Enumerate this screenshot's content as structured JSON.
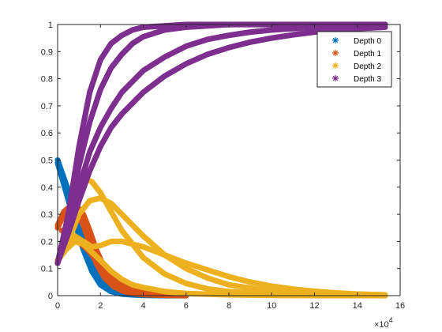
{
  "chart_data": {
    "type": "scatter",
    "title": "",
    "xlabel": "",
    "ylabel": "",
    "xlim": [
      0,
      16
    ],
    "ylim": [
      0,
      1
    ],
    "x_multiplier_label": "×10",
    "x_multiplier_exponent": "4",
    "x_ticks": [
      0,
      2,
      4,
      6,
      8,
      10,
      12,
      14,
      16
    ],
    "x_tick_labels": [
      "0",
      "2",
      "4",
      "6",
      "8",
      "10",
      "12",
      "14",
      "16"
    ],
    "y_ticks": [
      0,
      0.1,
      0.2,
      0.3,
      0.4,
      0.5,
      0.6,
      0.7,
      0.8,
      0.9,
      1
    ],
    "y_tick_labels": [
      "0",
      "0.1",
      "0.2",
      "0.3",
      "0.4",
      "0.5",
      "0.6",
      "0.7",
      "0.8",
      "0.9",
      "1"
    ],
    "grid": false,
    "legend_position": "top-right",
    "marker": "*",
    "series": [
      {
        "name": "Depth 0",
        "color": "#0072BD",
        "curves": [
          {
            "x": [
              0,
              0.4,
              0.8,
              1.2,
              1.6,
              2.0,
              2.5,
              3.0,
              3.5,
              4.0,
              5.0,
              6.0
            ],
            "y": [
              0.5,
              0.41,
              0.31,
              0.21,
              0.12,
              0.06,
              0.025,
              0.01,
              0.005,
              0.002,
              0.001,
              0.0
            ]
          },
          {
            "x": [
              0,
              0.4,
              0.8,
              1.2,
              1.6,
              2.0,
              2.5,
              3.0,
              3.5,
              4.0,
              5.0,
              6.0
            ],
            "y": [
              0.49,
              0.38,
              0.27,
              0.17,
              0.09,
              0.04,
              0.015,
              0.006,
              0.003,
              0.001,
              0.0,
              0.0
            ]
          }
        ]
      },
      {
        "name": "Depth 1",
        "color": "#D95319",
        "curves": [
          {
            "x": [
              0,
              0.3,
              0.6,
              0.9,
              1.2,
              1.5,
              1.8,
              2.2,
              2.6,
              3.0,
              3.5,
              4.0,
              5.0,
              6.0
            ],
            "y": [
              0.25,
              0.3,
              0.33,
              0.33,
              0.3,
              0.24,
              0.17,
              0.1,
              0.055,
              0.03,
              0.015,
              0.008,
              0.003,
              0.0
            ]
          },
          {
            "x": [
              0,
              0.3,
              0.6,
              0.9,
              1.2,
              1.5,
              1.8,
              2.2,
              2.6,
              3.0,
              3.5,
              4.0,
              5.0,
              6.0
            ],
            "y": [
              0.26,
              0.31,
              0.33,
              0.31,
              0.26,
              0.19,
              0.12,
              0.065,
              0.035,
              0.018,
              0.008,
              0.004,
              0.001,
              0.0
            ]
          },
          {
            "x": [
              0.2,
              0.5,
              0.8,
              1.1,
              1.4,
              1.8,
              2.2,
              2.6,
              3.0,
              3.5,
              4.0,
              4.5,
              5.0,
              6.0
            ],
            "y": [
              0.24,
              0.22,
              0.21,
              0.19,
              0.17,
              0.13,
              0.09,
              0.06,
              0.04,
              0.025,
              0.015,
              0.01,
              0.006,
              0.002
            ]
          }
        ]
      },
      {
        "name": "Depth 2",
        "color": "#EDB120",
        "curves": [
          {
            "x": [
              0,
              0.5,
              1.0,
              1.3,
              1.6,
              2.0,
              2.5,
              3.0,
              4.0,
              5.0,
              6.0,
              7.0,
              8.0,
              10.0,
              12.0,
              15.3
            ],
            "y": [
              0.13,
              0.22,
              0.38,
              0.43,
              0.42,
              0.38,
              0.31,
              0.24,
              0.14,
              0.08,
              0.045,
              0.025,
              0.015,
              0.005,
              0.002,
              0.0
            ]
          },
          {
            "x": [
              0,
              0.5,
              1.0,
              1.5,
              2.0,
              2.5,
              3.0,
              4.0,
              5.0,
              6.0,
              7.0,
              8.0,
              10.0,
              12.0,
              15.3
            ],
            "y": [
              0.13,
              0.2,
              0.3,
              0.35,
              0.36,
              0.34,
              0.3,
              0.22,
              0.15,
              0.1,
              0.065,
              0.04,
              0.016,
              0.006,
              0.0
            ]
          },
          {
            "x": [
              0,
              0.4,
              0.8,
              1.2,
              1.6,
              2.0,
              2.5,
              3.0,
              4.0,
              5.0,
              6.0,
              7.0,
              8.0,
              9.0,
              10.0,
              11.0,
              12.0,
              13.0,
              14.0,
              15.3
            ],
            "y": [
              0.13,
              0.18,
              0.22,
              0.2,
              0.18,
              0.185,
              0.2,
              0.2,
              0.18,
              0.15,
              0.12,
              0.095,
              0.07,
              0.05,
              0.035,
              0.024,
              0.016,
              0.01,
              0.006,
              0.003
            ]
          },
          {
            "x": [
              0,
              0.4,
              0.8,
              1.2,
              1.6,
              2.0,
              2.5,
              3.0,
              3.5,
              4.0,
              5.0,
              6.0,
              8.0,
              10.0,
              12.0,
              15.3
            ],
            "y": [
              0.13,
              0.17,
              0.2,
              0.19,
              0.16,
              0.13,
              0.09,
              0.06,
              0.04,
              0.03,
              0.015,
              0.008,
              0.003,
              0.001,
              0.0,
              0.0
            ]
          }
        ]
      },
      {
        "name": "Depth 3",
        "color": "#7E2F8E",
        "curves": [
          {
            "x": [
              0,
              0.5,
              1.0,
              1.5,
              2.0,
              2.5,
              3.0,
              3.5,
              4.0,
              5.0,
              6.0,
              8.0,
              10.0,
              15.3
            ],
            "y": [
              0.12,
              0.3,
              0.55,
              0.75,
              0.87,
              0.93,
              0.96,
              0.98,
              0.99,
              0.995,
              1.0,
              1.0,
              1.0,
              1.0
            ]
          },
          {
            "x": [
              0,
              0.5,
              1.0,
              1.5,
              2.0,
              2.5,
              3.0,
              3.5,
              4.0,
              5.0,
              6.0,
              7.0,
              8.0,
              10.0,
              15.3
            ],
            "y": [
              0.12,
              0.28,
              0.48,
              0.64,
              0.76,
              0.84,
              0.89,
              0.93,
              0.955,
              0.98,
              0.99,
              0.995,
              1.0,
              1.0,
              1.0
            ]
          },
          {
            "x": [
              0,
              0.5,
              1.0,
              1.5,
              2.0,
              2.5,
              3.0,
              4.0,
              5.0,
              6.0,
              7.0,
              8.0,
              9.0,
              10.0,
              12.0,
              15.3
            ],
            "y": [
              0.12,
              0.25,
              0.4,
              0.53,
              0.62,
              0.69,
              0.75,
              0.83,
              0.88,
              0.92,
              0.945,
              0.96,
              0.972,
              0.98,
              0.99,
              1.0
            ]
          },
          {
            "x": [
              0,
              0.5,
              1.0,
              1.5,
              2.0,
              2.5,
              3.0,
              4.0,
              5.0,
              6.0,
              7.0,
              8.0,
              9.0,
              10.0,
              11.0,
              12.0,
              13.0,
              14.0,
              15.3
            ],
            "y": [
              0.12,
              0.23,
              0.35,
              0.46,
              0.55,
              0.62,
              0.67,
              0.75,
              0.81,
              0.855,
              0.89,
              0.915,
              0.935,
              0.95,
              0.962,
              0.972,
              0.98,
              0.985,
              0.99
            ]
          }
        ]
      }
    ]
  }
}
